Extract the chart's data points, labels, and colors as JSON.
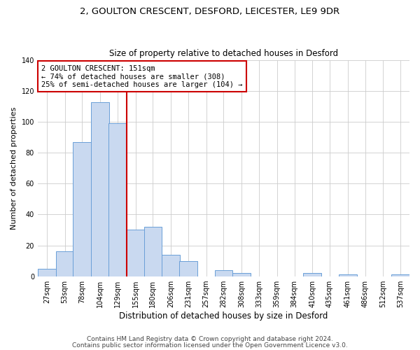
{
  "title1": "2, GOULTON CRESCENT, DESFORD, LEICESTER, LE9 9DR",
  "title2": "Size of property relative to detached houses in Desford",
  "xlabel": "Distribution of detached houses by size in Desford",
  "ylabel": "Number of detached properties",
  "bin_labels": [
    "27sqm",
    "53sqm",
    "78sqm",
    "104sqm",
    "129sqm",
    "155sqm",
    "180sqm",
    "206sqm",
    "231sqm",
    "257sqm",
    "282sqm",
    "308sqm",
    "333sqm",
    "359sqm",
    "384sqm",
    "410sqm",
    "435sqm",
    "461sqm",
    "486sqm",
    "512sqm",
    "537sqm"
  ],
  "bin_edges_numeric": [
    27,
    53,
    78,
    104,
    129,
    155,
    180,
    206,
    231,
    257,
    282,
    308,
    333,
    359,
    384,
    410,
    435,
    461,
    486,
    512,
    537
  ],
  "bar_heights": [
    5,
    16,
    87,
    113,
    99,
    30,
    32,
    14,
    10,
    0,
    4,
    2,
    0,
    0,
    0,
    2,
    0,
    1,
    0,
    0,
    1
  ],
  "bar_color": "#c9d9f0",
  "bar_edge_color": "#6a9fd8",
  "vline_x": 155,
  "vline_color": "#cc0000",
  "annotation_title": "2 GOULTON CRESCENT: 151sqm",
  "annotation_line1": "← 74% of detached houses are smaller (308)",
  "annotation_line2": "25% of semi-detached houses are larger (104) →",
  "annotation_box_color": "#cc0000",
  "annotation_bg": "#ffffff",
  "footer1": "Contains HM Land Registry data © Crown copyright and database right 2024.",
  "footer2": "Contains public sector information licensed under the Open Government Licence v3.0.",
  "ylim": [
    0,
    140
  ],
  "title1_fontsize": 9.5,
  "title2_fontsize": 8.5,
  "xlabel_fontsize": 8.5,
  "ylabel_fontsize": 8,
  "tick_fontsize": 7,
  "annotation_fontsize": 7.5,
  "footer_fontsize": 6.5,
  "background_color": "#ffffff",
  "grid_color": "#cccccc"
}
